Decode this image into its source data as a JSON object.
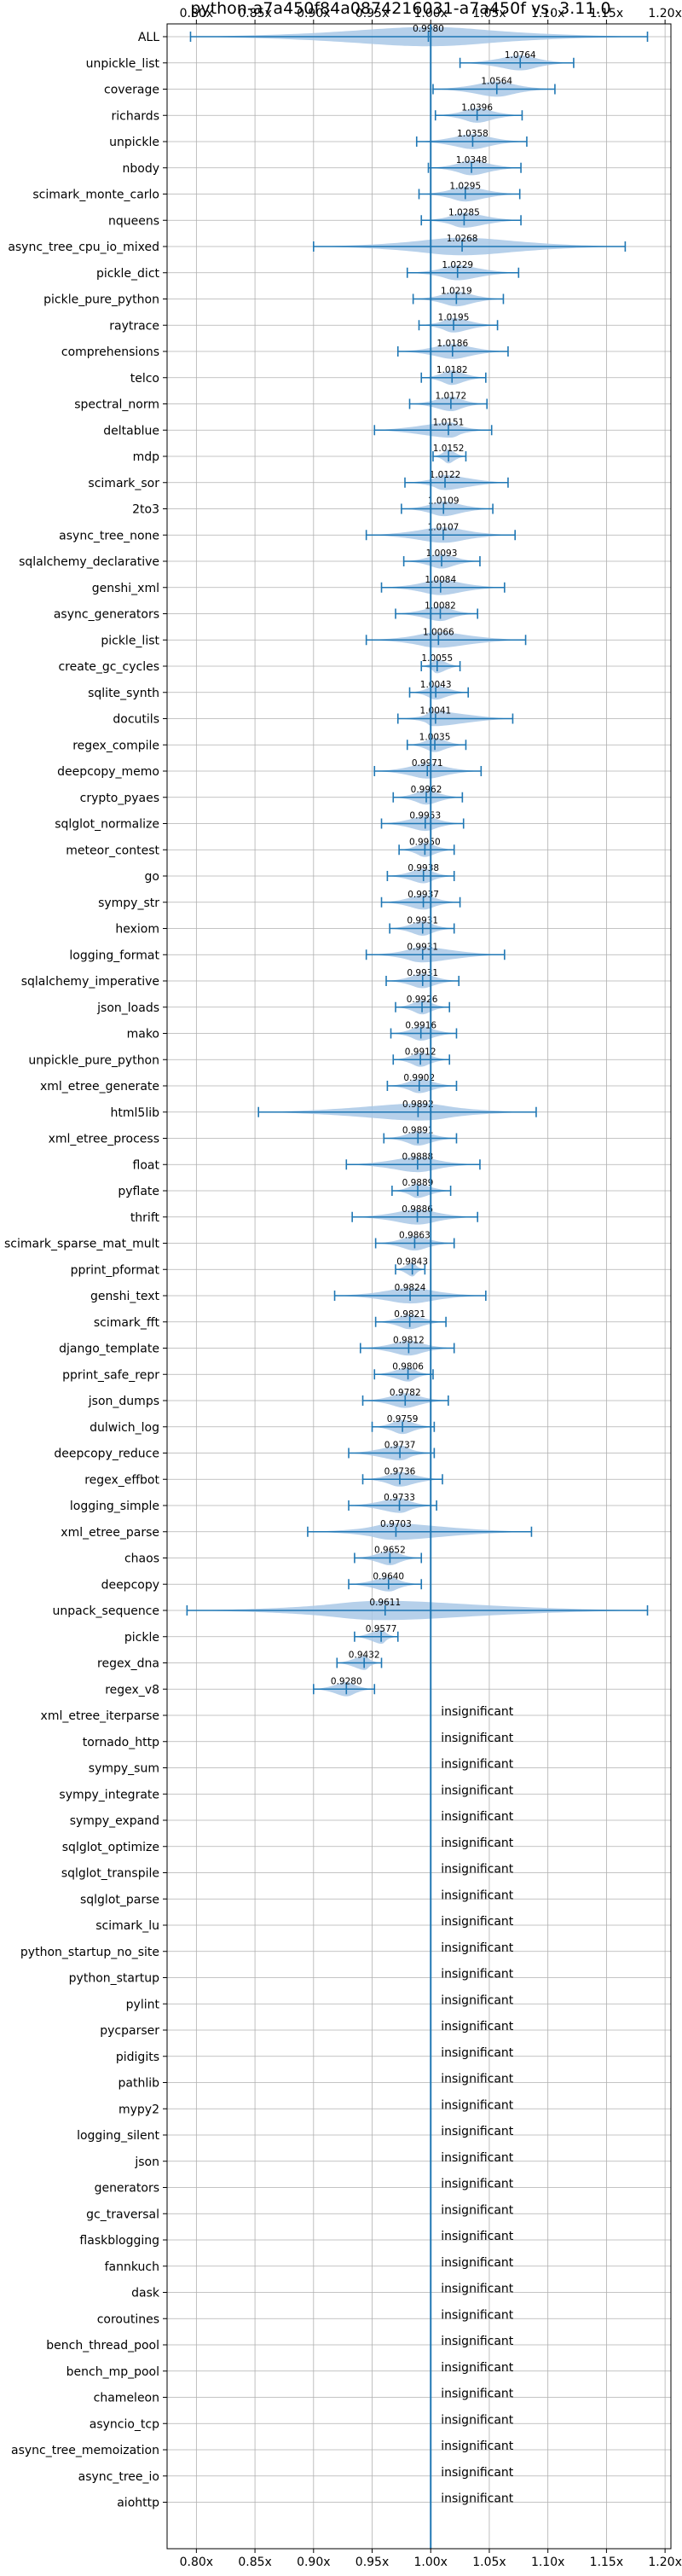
{
  "chart_data": {
    "type": "violin",
    "title": "python-a7a450f84a0874216031-a7a450f vs. 3.11.0",
    "x_ticks": [
      0.8,
      0.85,
      0.9,
      0.95,
      1.0,
      1.05,
      1.1,
      1.15,
      1.2
    ],
    "x_tick_labels": [
      "0.80x",
      "0.85x",
      "0.90x",
      "0.95x",
      "1.00x",
      "1.05x",
      "1.10x",
      "1.15x",
      "1.20x"
    ],
    "xlim": [
      0.775,
      1.205
    ],
    "reference_line": 1.0,
    "grid": true,
    "insignificant_label": "insignificant",
    "benchmarks": [
      {
        "name": "ALL",
        "value": 0.998,
        "label": "0.9980",
        "min": 0.795,
        "max": 1.185
      },
      {
        "name": "unpickle_list",
        "value": 1.0764,
        "label": "1.0764",
        "min": 1.025,
        "max": 1.122
      },
      {
        "name": "coverage",
        "value": 1.0564,
        "label": "1.0564",
        "min": 1.002,
        "max": 1.106
      },
      {
        "name": "richards",
        "value": 1.0396,
        "label": "1.0396",
        "min": 1.004,
        "max": 1.078
      },
      {
        "name": "unpickle",
        "value": 1.0358,
        "label": "1.0358",
        "min": 0.988,
        "max": 1.082
      },
      {
        "name": "nbody",
        "value": 1.0348,
        "label": "1.0348",
        "min": 0.998,
        "max": 1.077
      },
      {
        "name": "scimark_monte_carlo",
        "value": 1.0295,
        "label": "1.0295",
        "min": 0.99,
        "max": 1.076
      },
      {
        "name": "nqueens",
        "value": 1.0285,
        "label": "1.0285",
        "min": 0.992,
        "max": 1.077
      },
      {
        "name": "async_tree_cpu_io_mixed",
        "value": 1.0268,
        "label": "1.0268",
        "min": 0.9,
        "max": 1.166
      },
      {
        "name": "pickle_dict",
        "value": 1.0229,
        "label": "1.0229",
        "min": 0.98,
        "max": 1.075
      },
      {
        "name": "pickle_pure_python",
        "value": 1.0219,
        "label": "1.0219",
        "min": 0.985,
        "max": 1.062
      },
      {
        "name": "raytrace",
        "value": 1.0195,
        "label": "1.0195",
        "min": 0.99,
        "max": 1.057
      },
      {
        "name": "comprehensions",
        "value": 1.0186,
        "label": "1.0186",
        "min": 0.972,
        "max": 1.066
      },
      {
        "name": "telco",
        "value": 1.0182,
        "label": "1.0182",
        "min": 0.992,
        "max": 1.047
      },
      {
        "name": "spectral_norm",
        "value": 1.0172,
        "label": "1.0172",
        "min": 0.982,
        "max": 1.048
      },
      {
        "name": "deltablue",
        "value": 1.0151,
        "label": "1.0151",
        "min": 0.952,
        "max": 1.052
      },
      {
        "name": "mdp",
        "value": 1.0152,
        "label": "1.0152",
        "min": 1.002,
        "max": 1.03
      },
      {
        "name": "scimark_sor",
        "value": 1.0122,
        "label": "1.0122",
        "min": 0.978,
        "max": 1.066
      },
      {
        "name": "2to3",
        "value": 1.0109,
        "label": "1.0109",
        "min": 0.975,
        "max": 1.053
      },
      {
        "name": "async_tree_none",
        "value": 1.0107,
        "label": "1.0107",
        "min": 0.945,
        "max": 1.072
      },
      {
        "name": "sqlalchemy_declarative",
        "value": 1.0093,
        "label": "1.0093",
        "min": 0.977,
        "max": 1.042
      },
      {
        "name": "genshi_xml",
        "value": 1.0084,
        "label": "1.0084",
        "min": 0.958,
        "max": 1.063
      },
      {
        "name": "async_generators",
        "value": 1.0082,
        "label": "1.0082",
        "min": 0.97,
        "max": 1.04
      },
      {
        "name": "pickle_list",
        "value": 1.0066,
        "label": "1.0066",
        "min": 0.945,
        "max": 1.081
      },
      {
        "name": "create_gc_cycles",
        "value": 1.0055,
        "label": "1.0055",
        "min": 0.992,
        "max": 1.025
      },
      {
        "name": "sqlite_synth",
        "value": 1.0043,
        "label": "1.0043",
        "min": 0.982,
        "max": 1.032
      },
      {
        "name": "docutils",
        "value": 1.0041,
        "label": "1.0041",
        "min": 0.972,
        "max": 1.07
      },
      {
        "name": "regex_compile",
        "value": 1.0035,
        "label": "1.0035",
        "min": 0.98,
        "max": 1.03
      },
      {
        "name": "deepcopy_memo",
        "value": 0.9971,
        "label": "0.9971",
        "min": 0.952,
        "max": 1.043
      },
      {
        "name": "crypto_pyaes",
        "value": 0.9962,
        "label": "0.9962",
        "min": 0.968,
        "max": 1.027
      },
      {
        "name": "sqlglot_normalize",
        "value": 0.9953,
        "label": "0.9953",
        "min": 0.958,
        "max": 1.028
      },
      {
        "name": "meteor_contest",
        "value": 0.995,
        "label": "0.9950",
        "min": 0.973,
        "max": 1.02
      },
      {
        "name": "go",
        "value": 0.9938,
        "label": "0.9938",
        "min": 0.963,
        "max": 1.02
      },
      {
        "name": "sympy_str",
        "value": 0.9937,
        "label": "0.9937",
        "min": 0.958,
        "max": 1.025
      },
      {
        "name": "hexiom",
        "value": 0.9931,
        "label": "0.9931",
        "min": 0.965,
        "max": 1.02
      },
      {
        "name": "logging_format",
        "value": 0.9931,
        "label": "0.9931",
        "min": 0.945,
        "max": 1.063
      },
      {
        "name": "sqlalchemy_imperative",
        "value": 0.9931,
        "label": "0.9931",
        "min": 0.962,
        "max": 1.024
      },
      {
        "name": "json_loads",
        "value": 0.9926,
        "label": "0.9926",
        "min": 0.97,
        "max": 1.016
      },
      {
        "name": "mako",
        "value": 0.9916,
        "label": "0.9916",
        "min": 0.966,
        "max": 1.022
      },
      {
        "name": "unpickle_pure_python",
        "value": 0.9912,
        "label": "0.9912",
        "min": 0.968,
        "max": 1.016
      },
      {
        "name": "xml_etree_generate",
        "value": 0.9902,
        "label": "0.9902",
        "min": 0.963,
        "max": 1.022
      },
      {
        "name": "html5lib",
        "value": 0.9892,
        "label": "0.9892",
        "min": 0.853,
        "max": 1.09
      },
      {
        "name": "xml_etree_process",
        "value": 0.9891,
        "label": "0.9891",
        "min": 0.96,
        "max": 1.022
      },
      {
        "name": "float",
        "value": 0.9888,
        "label": "0.9888",
        "min": 0.928,
        "max": 1.042
      },
      {
        "name": "pyflate",
        "value": 0.9889,
        "label": "0.9889",
        "min": 0.967,
        "max": 1.017
      },
      {
        "name": "thrift",
        "value": 0.9886,
        "label": "0.9886",
        "min": 0.933,
        "max": 1.04
      },
      {
        "name": "scimark_sparse_mat_mult",
        "value": 0.9863,
        "label": "0.9863",
        "min": 0.953,
        "max": 1.02
      },
      {
        "name": "pprint_pformat",
        "value": 0.9843,
        "label": "0.9843",
        "min": 0.97,
        "max": 0.995
      },
      {
        "name": "genshi_text",
        "value": 0.9824,
        "label": "0.9824",
        "min": 0.918,
        "max": 1.047
      },
      {
        "name": "scimark_fft",
        "value": 0.9821,
        "label": "0.9821",
        "min": 0.953,
        "max": 1.013
      },
      {
        "name": "django_template",
        "value": 0.9812,
        "label": "0.9812",
        "min": 0.94,
        "max": 1.02
      },
      {
        "name": "pprint_safe_repr",
        "value": 0.9806,
        "label": "0.9806",
        "min": 0.952,
        "max": 1.002
      },
      {
        "name": "json_dumps",
        "value": 0.9782,
        "label": "0.9782",
        "min": 0.942,
        "max": 1.015
      },
      {
        "name": "dulwich_log",
        "value": 0.9759,
        "label": "0.9759",
        "min": 0.95,
        "max": 1.003
      },
      {
        "name": "deepcopy_reduce",
        "value": 0.9737,
        "label": "0.9737",
        "min": 0.93,
        "max": 1.003
      },
      {
        "name": "regex_effbot",
        "value": 0.9736,
        "label": "0.9736",
        "min": 0.942,
        "max": 1.01
      },
      {
        "name": "logging_simple",
        "value": 0.9733,
        "label": "0.9733",
        "min": 0.93,
        "max": 1.005
      },
      {
        "name": "xml_etree_parse",
        "value": 0.9703,
        "label": "0.9703",
        "min": 0.895,
        "max": 1.086
      },
      {
        "name": "chaos",
        "value": 0.9652,
        "label": "0.9652",
        "min": 0.935,
        "max": 0.992
      },
      {
        "name": "deepcopy",
        "value": 0.964,
        "label": "0.9640",
        "min": 0.93,
        "max": 0.992
      },
      {
        "name": "unpack_sequence",
        "value": 0.9611,
        "label": "0.9611",
        "min": 0.792,
        "max": 1.185
      },
      {
        "name": "pickle",
        "value": 0.9577,
        "label": "0.9577",
        "min": 0.935,
        "max": 0.972
      },
      {
        "name": "regex_dna",
        "value": 0.9432,
        "label": "0.9432",
        "min": 0.92,
        "max": 0.958
      },
      {
        "name": "regex_v8",
        "value": 0.928,
        "label": "0.9280",
        "min": 0.9,
        "max": 0.952
      },
      {
        "name": "xml_etree_iterparse",
        "insignificant": true
      },
      {
        "name": "tornado_http",
        "insignificant": true
      },
      {
        "name": "sympy_sum",
        "insignificant": true
      },
      {
        "name": "sympy_integrate",
        "insignificant": true
      },
      {
        "name": "sympy_expand",
        "insignificant": true
      },
      {
        "name": "sqlglot_optimize",
        "insignificant": true
      },
      {
        "name": "sqlglot_transpile",
        "insignificant": true
      },
      {
        "name": "sqlglot_parse",
        "insignificant": true
      },
      {
        "name": "scimark_lu",
        "insignificant": true
      },
      {
        "name": "python_startup_no_site",
        "insignificant": true
      },
      {
        "name": "python_startup",
        "insignificant": true
      },
      {
        "name": "pylint",
        "insignificant": true
      },
      {
        "name": "pycparser",
        "insignificant": true
      },
      {
        "name": "pidigits",
        "insignificant": true
      },
      {
        "name": "pathlib",
        "insignificant": true
      },
      {
        "name": "mypy2",
        "insignificant": true
      },
      {
        "name": "logging_silent",
        "insignificant": true
      },
      {
        "name": "json",
        "insignificant": true
      },
      {
        "name": "generators",
        "insignificant": true
      },
      {
        "name": "gc_traversal",
        "insignificant": true
      },
      {
        "name": "flaskblogging",
        "insignificant": true
      },
      {
        "name": "fannkuch",
        "insignificant": true
      },
      {
        "name": "dask",
        "insignificant": true
      },
      {
        "name": "coroutines",
        "insignificant": true
      },
      {
        "name": "bench_thread_pool",
        "insignificant": true
      },
      {
        "name": "bench_mp_pool",
        "insignificant": true
      },
      {
        "name": "chameleon",
        "insignificant": true
      },
      {
        "name": "asyncio_tcp",
        "insignificant": true
      },
      {
        "name": "async_tree_memoization",
        "insignificant": true
      },
      {
        "name": "async_tree_io",
        "insignificant": true
      },
      {
        "name": "aiohttp",
        "insignificant": true
      }
    ]
  },
  "colors": {
    "violin_fill": "#a9c8e6",
    "line": "#1f77b4",
    "grid": "#b0b0b0",
    "axis": "#000000"
  }
}
